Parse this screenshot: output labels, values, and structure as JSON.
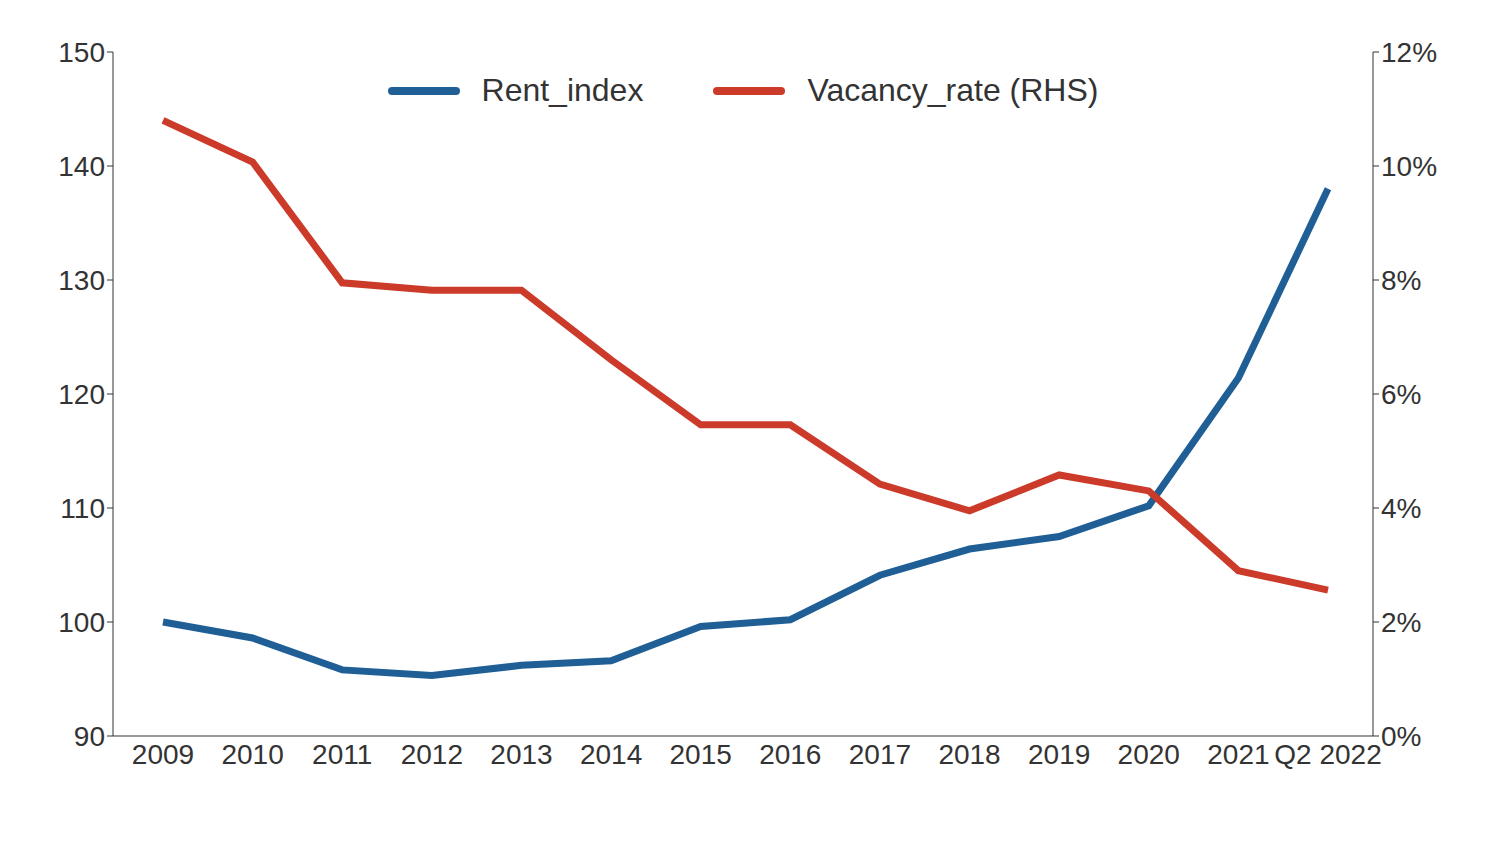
{
  "chart_data": {
    "type": "line",
    "categories": [
      "2009",
      "2010",
      "2011",
      "2012",
      "2013",
      "2014",
      "2015",
      "2016",
      "2017",
      "2018",
      "2019",
      "2020",
      "2021",
      "Q2 2022"
    ],
    "series": [
      {
        "name": "Rent_index",
        "color": "#1f5f96",
        "values": [
          100,
          98.6,
          95.8,
          95.3,
          96.2,
          96.6,
          99.6,
          100.2,
          104.1,
          106.4,
          107.5,
          110.2,
          121.4,
          138.0
        ]
      },
      {
        "name": "Vacancy_rate (RHS)",
        "color": "#cc3a2a",
        "axis": "y2",
        "values": [
          10.8,
          10.07,
          7.95,
          7.82,
          7.82,
          6.6,
          5.46,
          5.46,
          4.42,
          3.95,
          4.58,
          4.3,
          2.9,
          2.56
        ]
      }
    ],
    "ylim": [
      90,
      150
    ],
    "yticks": [
      90,
      100,
      110,
      120,
      130,
      140,
      150
    ],
    "y2lim": [
      0,
      12
    ],
    "y2ticks": [
      {
        "value": 0,
        "label": "0%"
      },
      {
        "value": 2,
        "label": "2%"
      },
      {
        "value": 4,
        "label": "4%"
      },
      {
        "value": 6,
        "label": "6%"
      },
      {
        "value": 8,
        "label": "8%"
      },
      {
        "value": 10,
        "label": "10%"
      },
      {
        "value": 12,
        "label": "12%"
      }
    ],
    "grid": false,
    "legend": "top"
  }
}
